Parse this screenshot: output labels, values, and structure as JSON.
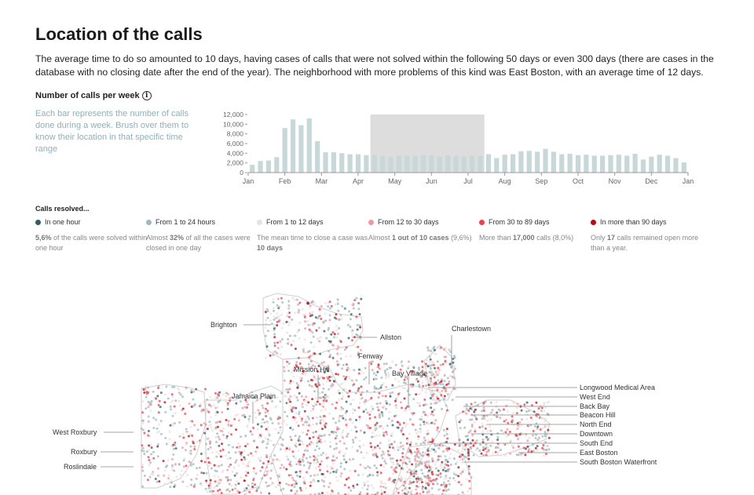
{
  "page": {
    "title": "Location of the calls",
    "intro": "The average time to do so amounted to 10 days, having cases of calls that were not solved within the following 50 days or even 300 days (there are cases in the database with no closing date after the end of the year). The neighborhood with more problems of this kind was East Boston, with an average time of 12 days."
  },
  "histogram": {
    "title": "Number of calls per week",
    "description": "Each bar represents the number of calls done during a week. Brush over them to know their location in that specific time range",
    "bar_color": "#c8d8d8",
    "brush_color": "#dddddd",
    "brush_range_weeks": [
      15,
      29
    ]
  },
  "chart_data": {
    "type": "bar",
    "y_ticks": [
      "12,000",
      "10,000",
      "8,000",
      "6,000",
      "4,000",
      "2,000",
      "0"
    ],
    "x_ticks": [
      "Jan",
      "Feb",
      "Mar",
      "Apr",
      "May",
      "Jun",
      "Jul",
      "Aug",
      "Sep",
      "Oct",
      "Nov",
      "Dec",
      "Jan"
    ],
    "ylim": [
      0,
      12000
    ],
    "values": [
      1600,
      2400,
      2500,
      3200,
      9200,
      11000,
      9800,
      11200,
      6500,
      4200,
      4200,
      4000,
      3800,
      3800,
      3600,
      3700,
      3400,
      3200,
      3500,
      3500,
      3400,
      3600,
      3500,
      3300,
      3600,
      3400,
      3300,
      3500,
      3400,
      3800,
      3000,
      3700,
      3800,
      4400,
      4500,
      4300,
      4900,
      4300,
      3800,
      3900,
      3600,
      3700,
      3500,
      3500,
      3600,
      3700,
      3500,
      3900,
      2700,
      3300,
      3700,
      3500,
      3000,
      2100
    ]
  },
  "legend": {
    "title": "Calls resolved...",
    "items": [
      {
        "label": "In one hour",
        "color": "#2d5e68",
        "note_strong": "5,6%",
        "note": " of the calls were solved within one hour"
      },
      {
        "label": "From 1 to 24 hours",
        "color": "#9fb8be",
        "note_pre": "Almost ",
        "note_strong": "32%",
        "note": " of all the cases were closed in one day"
      },
      {
        "label": "From 1 to 12 days",
        "color": "#ece0dc",
        "note_pre": "The mean time to close a case was ",
        "note_strong": "10 days",
        "note": ""
      },
      {
        "label": "From 12 to 30 days",
        "color": "#ef98a3",
        "note_pre": "Almost ",
        "note_strong": "1 out of 10 cases",
        "note": " (9,6%)"
      },
      {
        "label": "From 30 to 89 days",
        "color": "#e8434f",
        "note_pre": "More than ",
        "note_strong": "17,000",
        "note": " calls (8,0%)"
      },
      {
        "label": "In more than 90 days",
        "color": "#b20e14",
        "note_pre": "Only ",
        "note_strong": "17",
        "note": " calls remained open more than a year."
      }
    ]
  },
  "map": {
    "neighborhoods": [
      "Brighton",
      "Allston",
      "Charlestown",
      "Fenway",
      "Mission Hill",
      "Bay Village",
      "Jamaica Plain",
      "West Roxbury",
      "Roxbury",
      "Roslindale",
      "Longwood Medical Area",
      "West End",
      "Back Bay",
      "Beacon Hill",
      "North End",
      "Downtown",
      "South End",
      "East Boston",
      "South Boston Waterfront"
    ]
  }
}
